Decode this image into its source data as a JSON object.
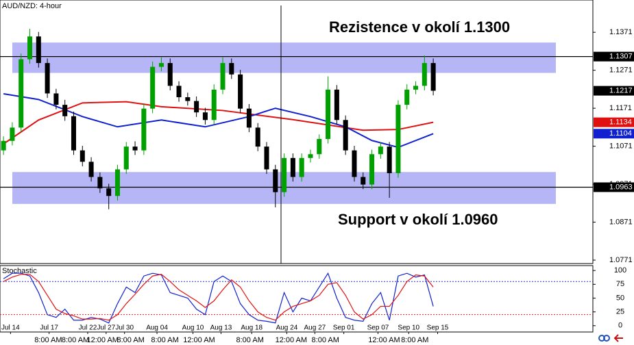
{
  "chart_data": [
    {
      "type": "candlestick",
      "title": "AUD/NZD: 4-hour",
      "annotations": [
        "Rezistence v okolí 1.1300",
        "Support v okolí 1.0960"
      ],
      "xlim": [
        -0.4,
        67.2
      ],
      "ylim": [
        1.0762,
        1.1456
      ],
      "yticks": [
        1.0771,
        1.0871,
        1.0971,
        1.1071,
        1.1171,
        1.1271,
        1.1371
      ],
      "xticks": [
        {
          "value": 0.8,
          "label": "Jul 14"
        },
        {
          "value": 5.2,
          "label": "Jul 17"
        },
        {
          "value": 9.6,
          "label": "Jul 22"
        },
        {
          "value": 11.7,
          "label": "Jul 27"
        },
        {
          "value": 13.8,
          "label": "Jul 30"
        },
        {
          "value": 17.5,
          "label": "Aug 04"
        },
        {
          "value": 21.6,
          "label": "Aug 10"
        },
        {
          "value": 24.8,
          "label": "Aug 13"
        },
        {
          "value": 28.3,
          "label": "Aug 18"
        },
        {
          "value": 32.3,
          "label": "Aug 24"
        },
        {
          "value": 35.5,
          "label": "Aug 27"
        },
        {
          "value": 38.8,
          "label": "Sep 01"
        },
        {
          "value": 42.7,
          "label": "Sep 07"
        },
        {
          "value": 46.2,
          "label": "Sep 10"
        },
        {
          "value": 49.5,
          "label": "Sep 15"
        }
      ],
      "xticks2": [
        {
          "value": 5.1,
          "label": "8:00 AM"
        },
        {
          "value": 8.2,
          "label": "8:00 AM"
        },
        {
          "value": 11.3,
          "label": "12:00 AM"
        },
        {
          "value": 14.5,
          "label": "8:00 AM"
        },
        {
          "value": 18.4,
          "label": "8:00 AM"
        },
        {
          "value": 22.3,
          "label": "12:00 AM"
        },
        {
          "value": 28.1,
          "label": "8:00 AM"
        },
        {
          "value": 32.8,
          "label": "12:00 AM"
        },
        {
          "value": 36.7,
          "label": "8:00 AM"
        },
        {
          "value": 43.4,
          "label": "12:00 AM"
        },
        {
          "value": 46.9,
          "label": "8:00 AM"
        }
      ],
      "bull_color": "#00a000",
      "bear_color": "#000000",
      "zones": [
        [
          1.1264,
          1.1344
        ],
        [
          1.0919,
          1.1003
        ]
      ],
      "zone_color": "#a9a9f5",
      "hlines": [
        1.1307,
        1.0963
      ],
      "price_labels": [
        {
          "value": 1.1307,
          "color": "#000000"
        },
        {
          "value": 1.1217,
          "color": "#000000"
        },
        {
          "value": 1.1134,
          "color": "#e01010"
        },
        {
          "value": 1.1104,
          "color": "#1020d0"
        },
        {
          "value": 1.0963,
          "color": "#000000"
        }
      ],
      "x": [
        0,
        1,
        2,
        3,
        4,
        5,
        6,
        7,
        8,
        9,
        10,
        11,
        12,
        13,
        14,
        15,
        16,
        17,
        18,
        19,
        20,
        21,
        22,
        23,
        24,
        25,
        26,
        27,
        28,
        29,
        30,
        31,
        32,
        33,
        34,
        35,
        36,
        37,
        38,
        39,
        40,
        41,
        42,
        43,
        44,
        45,
        46,
        47,
        48,
        49
      ],
      "open": [
        1.106,
        1.1085,
        1.112,
        1.13,
        1.136,
        1.129,
        1.121,
        1.118,
        1.115,
        1.106,
        1.103,
        1.099,
        1.096,
        1.094,
        1.101,
        1.107,
        1.106,
        1.117,
        1.128,
        1.129,
        1.123,
        1.12,
        1.119,
        1.116,
        1.114,
        1.122,
        1.129,
        1.126,
        1.117,
        1.112,
        1.107,
        1.101,
        1.095,
        1.104,
        1.099,
        1.104,
        1.105,
        1.109,
        1.122,
        1.114,
        1.106,
        1.099,
        1.097,
        1.105,
        1.107,
        1.1,
        1.118,
        1.122,
        1.123,
        1.129
      ],
      "high": [
        1.1097,
        1.1134,
        1.1315,
        1.138,
        1.1372,
        1.1302,
        1.1222,
        1.1193,
        1.1162,
        1.1072,
        1.1042,
        1.1002,
        1.0972,
        1.1022,
        1.1082,
        1.1084,
        1.1182,
        1.1294,
        1.1305,
        1.1302,
        1.1242,
        1.1212,
        1.1202,
        1.1172,
        1.1234,
        1.1305,
        1.1302,
        1.1272,
        1.1182,
        1.1132,
        1.1082,
        1.1022,
        1.1052,
        1.1052,
        1.1052,
        1.1062,
        1.1102,
        1.1255,
        1.1232,
        1.1152,
        1.1072,
        1.1002,
        1.1062,
        1.1082,
        1.1082,
        1.1192,
        1.1234,
        1.1242,
        1.131,
        1.1302
      ],
      "low": [
        1.1048,
        1.1073,
        1.1108,
        1.1288,
        1.1278,
        1.1198,
        1.1168,
        1.1138,
        1.1048,
        1.1018,
        1.0978,
        1.0948,
        1.0905,
        1.0928,
        1.0998,
        1.1048,
        1.1048,
        1.1158,
        1.1268,
        1.1218,
        1.1188,
        1.1178,
        1.1148,
        1.1128,
        1.1128,
        1.1208,
        1.1248,
        1.1158,
        1.1108,
        1.1058,
        1.0998,
        1.091,
        1.0938,
        1.0978,
        1.0978,
        1.1028,
        1.1038,
        1.1078,
        1.1128,
        1.1048,
        1.0978,
        1.0958,
        1.0958,
        1.1038,
        1.0935,
        1.0988,
        1.1168,
        1.1208,
        1.1218,
        1.1205
      ],
      "close": [
        1.1085,
        1.112,
        1.13,
        1.136,
        1.129,
        1.121,
        1.118,
        1.115,
        1.106,
        1.103,
        1.099,
        1.096,
        1.094,
        1.101,
        1.107,
        1.106,
        1.117,
        1.128,
        1.129,
        1.123,
        1.12,
        1.119,
        1.116,
        1.114,
        1.122,
        1.129,
        1.126,
        1.117,
        1.112,
        1.107,
        1.101,
        1.095,
        1.104,
        1.099,
        1.104,
        1.105,
        1.109,
        1.122,
        1.114,
        1.106,
        1.099,
        1.097,
        1.105,
        1.107,
        1.1,
        1.118,
        1.122,
        1.123,
        1.129,
        1.1217
      ],
      "series": [
        {
          "color": "#e01010",
          "x": [
            0,
            4,
            9,
            14,
            18,
            25,
            33,
            41,
            45,
            49
          ],
          "values": [
            1.1077,
            1.114,
            1.1185,
            1.1188,
            1.1175,
            1.1165,
            1.1141,
            1.1113,
            1.1115,
            1.1134
          ]
        },
        {
          "color": "#1020d0",
          "x": [
            0,
            4,
            9,
            13,
            18,
            23,
            28,
            31,
            35,
            39,
            42,
            45,
            49
          ],
          "values": [
            1.1209,
            1.1194,
            1.1149,
            1.1122,
            1.114,
            1.1122,
            1.1149,
            1.1171,
            1.1149,
            1.1122,
            1.1086,
            1.1068,
            1.1104
          ]
        }
      ]
    },
    {
      "type": "line",
      "title": "Stochastic",
      "xlim": [
        -0.4,
        67.2
      ],
      "ylim": [
        -11.4,
        108.9
      ],
      "yticks": [
        0,
        25,
        50,
        75,
        100
      ],
      "levels": [
        {
          "value": 80,
          "color": "#2030c0"
        },
        {
          "value": 20,
          "color": "#e02020"
        }
      ],
      "series": [
        {
          "color": "#1020d0",
          "values": [
            85,
            95,
            95,
            90,
            60,
            20,
            15,
            30,
            10,
            10,
            15,
            12,
            5,
            40,
            70,
            60,
            90,
            95,
            92,
            60,
            55,
            50,
            30,
            20,
            80,
            90,
            80,
            40,
            20,
            10,
            8,
            5,
            60,
            25,
            50,
            45,
            70,
            95,
            50,
            15,
            10,
            8,
            40,
            60,
            10,
            90,
            95,
            88,
            92,
            35
          ]
        },
        {
          "color": "#e01010",
          "values": [
            80,
            88,
            93,
            93,
            80,
            55,
            30,
            22,
            18,
            12,
            12,
            13,
            10,
            20,
            40,
            57,
            75,
            90,
            93,
            80,
            65,
            55,
            45,
            33,
            45,
            65,
            83,
            70,
            45,
            25,
            15,
            10,
            25,
            35,
            40,
            45,
            55,
            75,
            78,
            55,
            25,
            12,
            20,
            35,
            35,
            55,
            80,
            92,
            90,
            70
          ]
        }
      ]
    }
  ]
}
